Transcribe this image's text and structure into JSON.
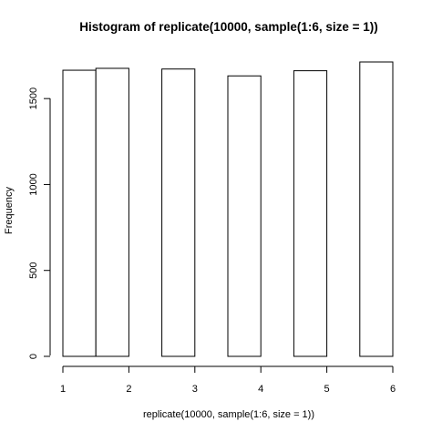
{
  "chart_data": {
    "type": "bar",
    "title": "Histogram of replicate(10000, sample(1:6, size = 1))",
    "xlabel": "replicate(10000, sample(1:6, size = 1))",
    "ylabel": "Frequency",
    "bins": [
      {
        "start": 1.0,
        "end": 1.5,
        "value": 1665
      },
      {
        "start": 1.5,
        "end": 2.0,
        "value": 1676
      },
      {
        "start": 2.5,
        "end": 3.0,
        "value": 1672
      },
      {
        "start": 3.5,
        "end": 4.0,
        "value": 1632
      },
      {
        "start": 4.5,
        "end": 5.0,
        "value": 1662
      },
      {
        "start": 5.5,
        "end": 6.0,
        "value": 1713
      }
    ],
    "xlim": [
      1,
      6
    ],
    "ylim": [
      0,
      1713
    ],
    "xticks": [
      1,
      2,
      3,
      4,
      5,
      6
    ],
    "yticks": [
      0,
      500,
      1000,
      1500
    ],
    "grid": false,
    "legend": "none",
    "colors": {
      "bar_fill": "#ffffff",
      "bar_stroke": "#000000",
      "axis": "#000000"
    }
  }
}
